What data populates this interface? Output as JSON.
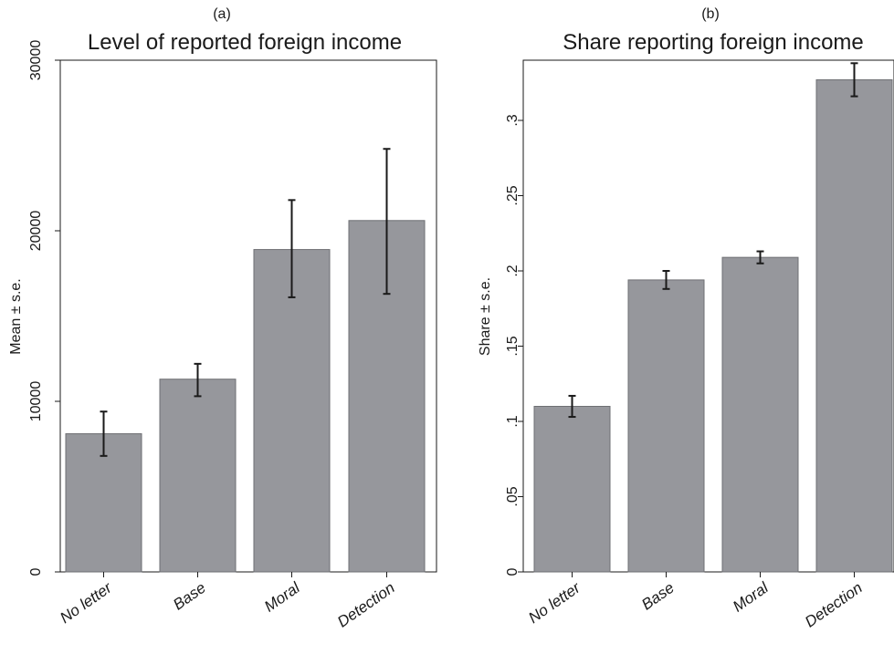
{
  "chart_data": [
    {
      "type": "bar",
      "panel_label": "(a)",
      "title": "Level of reported foreign income",
      "ylabel": "Mean ± s.e.",
      "xlabel": "",
      "categories": [
        "No letter",
        "Base",
        "Moral",
        "Detection"
      ],
      "values": [
        8100,
        11300,
        18900,
        20600
      ],
      "error_low": [
        6800,
        10300,
        16100,
        16300
      ],
      "error_high": [
        9400,
        12200,
        21800,
        24800
      ],
      "ylim": [
        0,
        30000
      ],
      "yticks": [
        0,
        10000,
        20000,
        30000
      ],
      "ytick_labels": [
        "0",
        "10000",
        "20000",
        "30000"
      ],
      "bar_color": "#96979c",
      "grid": false
    },
    {
      "type": "bar",
      "panel_label": "(b)",
      "title": "Share reporting foreign income",
      "ylabel": "Share ± s.e.",
      "xlabel": "",
      "categories": [
        "No letter",
        "Base",
        "Moral",
        "Detection"
      ],
      "values": [
        0.11,
        0.194,
        0.209,
        0.327
      ],
      "error_low": [
        0.103,
        0.188,
        0.205,
        0.316
      ],
      "error_high": [
        0.117,
        0.2,
        0.213,
        0.338
      ],
      "ylim": [
        0,
        0.34
      ],
      "yticks": [
        0,
        0.05,
        0.1,
        0.15,
        0.2,
        0.25,
        0.3
      ],
      "ytick_labels": [
        "0",
        ".05",
        ".1",
        ".15",
        ".2",
        ".25",
        ".3"
      ],
      "bar_color": "#96979c",
      "grid": false
    }
  ]
}
